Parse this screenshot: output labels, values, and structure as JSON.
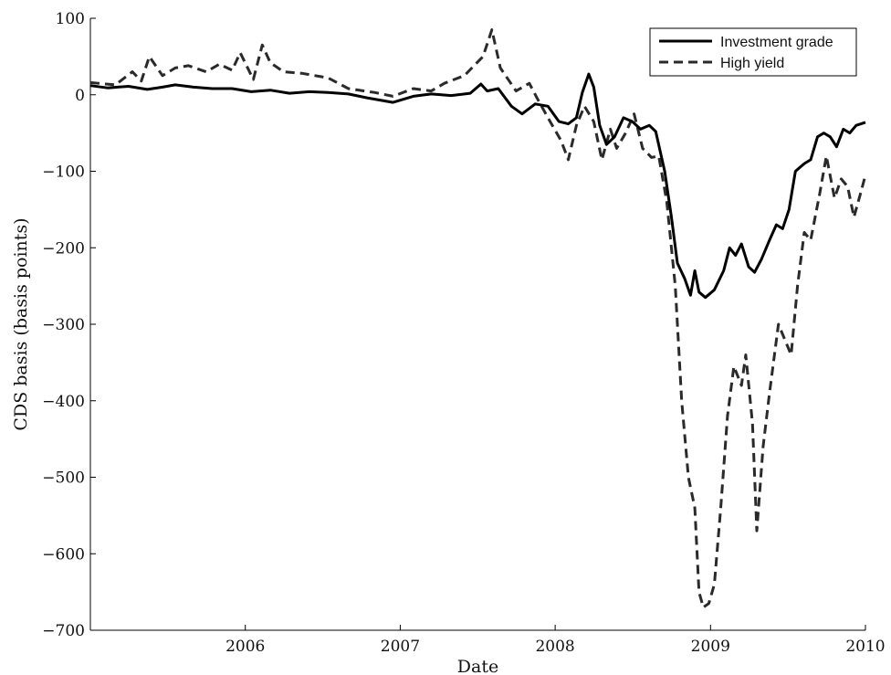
{
  "chart_data": {
    "type": "line",
    "title": "",
    "xlabel": "Date",
    "ylabel": "CDS basis (basis points)",
    "xlim": [
      "2005-01-01",
      "2010-01-01"
    ],
    "ylim": [
      -700,
      100
    ],
    "x_ticks": [
      {
        "date": "2006-01-01",
        "label": "2006"
      },
      {
        "date": "2007-01-01",
        "label": "2007"
      },
      {
        "date": "2008-01-01",
        "label": "2008"
      },
      {
        "date": "2009-01-01",
        "label": "2009"
      },
      {
        "date": "2010-01-01",
        "label": "2010"
      }
    ],
    "y_ticks": [
      {
        "value": 100,
        "label": "100"
      },
      {
        "value": 0,
        "label": "0"
      },
      {
        "value": -100,
        "label": "−100"
      },
      {
        "value": -200,
        "label": "−200"
      },
      {
        "value": -300,
        "label": "−300"
      },
      {
        "value": -400,
        "label": "−400"
      },
      {
        "value": -500,
        "label": "−500"
      },
      {
        "value": -600,
        "label": "−600"
      },
      {
        "value": -700,
        "label": "−700"
      }
    ],
    "grid": false,
    "legend_position": "top-right",
    "series": [
      {
        "name": "Investment grade",
        "style": "solid",
        "color": "#000000",
        "points": [
          [
            "2005-01-01",
            12
          ],
          [
            "2005-02-10",
            9
          ],
          [
            "2005-04-01",
            11
          ],
          [
            "2005-05-15",
            7
          ],
          [
            "2005-06-20",
            10
          ],
          [
            "2005-07-20",
            13
          ],
          [
            "2005-09-01",
            10
          ],
          [
            "2005-10-15",
            8
          ],
          [
            "2005-12-01",
            8
          ],
          [
            "2006-01-15",
            4
          ],
          [
            "2006-03-01",
            6
          ],
          [
            "2006-04-15",
            2
          ],
          [
            "2006-06-01",
            4
          ],
          [
            "2006-07-15",
            3
          ],
          [
            "2006-09-01",
            1
          ],
          [
            "2006-10-15",
            -4
          ],
          [
            "2006-12-15",
            -10
          ],
          [
            "2007-02-01",
            -2
          ],
          [
            "2007-03-15",
            1
          ],
          [
            "2007-05-01",
            -1
          ],
          [
            "2007-06-15",
            2
          ],
          [
            "2007-07-10",
            14
          ],
          [
            "2007-07-25",
            5
          ],
          [
            "2007-08-20",
            8
          ],
          [
            "2007-09-20",
            -15
          ],
          [
            "2007-10-15",
            -25
          ],
          [
            "2007-11-15",
            -12
          ],
          [
            "2007-12-15",
            -15
          ],
          [
            "2008-01-10",
            -35
          ],
          [
            "2008-02-01",
            -38
          ],
          [
            "2008-02-20",
            -30
          ],
          [
            "2008-03-05",
            3
          ],
          [
            "2008-03-20",
            27
          ],
          [
            "2008-04-01",
            10
          ],
          [
            "2008-04-15",
            -40
          ],
          [
            "2008-05-01",
            -65
          ],
          [
            "2008-05-20",
            -55
          ],
          [
            "2008-06-10",
            -30
          ],
          [
            "2008-07-01",
            -35
          ],
          [
            "2008-07-20",
            -45
          ],
          [
            "2008-08-10",
            -40
          ],
          [
            "2008-08-25",
            -48
          ],
          [
            "2008-09-15",
            -100
          ],
          [
            "2008-10-01",
            -160
          ],
          [
            "2008-10-15",
            -220
          ],
          [
            "2008-11-01",
            -240
          ],
          [
            "2008-11-15",
            -262
          ],
          [
            "2008-11-25",
            -230
          ],
          [
            "2008-12-05",
            -258
          ],
          [
            "2008-12-20",
            -265
          ],
          [
            "2009-01-10",
            -255
          ],
          [
            "2009-02-01",
            -230
          ],
          [
            "2009-02-15",
            -200
          ],
          [
            "2009-03-01",
            -210
          ],
          [
            "2009-03-15",
            -195
          ],
          [
            "2009-04-01",
            -225
          ],
          [
            "2009-04-15",
            -232
          ],
          [
            "2009-05-01",
            -215
          ],
          [
            "2009-05-20",
            -190
          ],
          [
            "2009-06-05",
            -170
          ],
          [
            "2009-06-20",
            -175
          ],
          [
            "2009-07-05",
            -150
          ],
          [
            "2009-07-20",
            -100
          ],
          [
            "2009-08-10",
            -90
          ],
          [
            "2009-08-25",
            -85
          ],
          [
            "2009-09-10",
            -55
          ],
          [
            "2009-09-25",
            -50
          ],
          [
            "2009-10-10",
            -55
          ],
          [
            "2009-10-25",
            -68
          ],
          [
            "2009-11-10",
            -45
          ],
          [
            "2009-11-25",
            -50
          ],
          [
            "2009-12-10",
            -40
          ],
          [
            "2010-01-01",
            -36
          ]
        ]
      },
      {
        "name": "High yield",
        "style": "dashed",
        "color": "#2a2a2a",
        "points": [
          [
            "2005-01-01",
            16
          ],
          [
            "2005-03-01",
            13
          ],
          [
            "2005-04-10",
            30
          ],
          [
            "2005-05-01",
            18
          ],
          [
            "2005-05-20",
            50
          ],
          [
            "2005-06-20",
            25
          ],
          [
            "2005-07-20",
            35
          ],
          [
            "2005-08-20",
            38
          ],
          [
            "2005-10-01",
            30
          ],
          [
            "2005-11-01",
            40
          ],
          [
            "2005-12-01",
            32
          ],
          [
            "2005-12-20",
            55
          ],
          [
            "2006-01-20",
            20
          ],
          [
            "2006-02-10",
            65
          ],
          [
            "2006-03-01",
            42
          ],
          [
            "2006-04-01",
            30
          ],
          [
            "2006-05-15",
            28
          ],
          [
            "2006-07-15",
            22
          ],
          [
            "2006-09-01",
            8
          ],
          [
            "2006-11-01",
            3
          ],
          [
            "2006-12-15",
            -2
          ],
          [
            "2007-02-01",
            8
          ],
          [
            "2007-03-15",
            5
          ],
          [
            "2007-04-15",
            15
          ],
          [
            "2007-06-01",
            25
          ],
          [
            "2007-07-15",
            50
          ],
          [
            "2007-08-05",
            85
          ],
          [
            "2007-08-25",
            35
          ],
          [
            "2007-10-01",
            5
          ],
          [
            "2007-11-01",
            15
          ],
          [
            "2007-11-20",
            -5
          ],
          [
            "2007-12-15",
            -30
          ],
          [
            "2008-01-15",
            -60
          ],
          [
            "2008-02-01",
            -85
          ],
          [
            "2008-02-20",
            -40
          ],
          [
            "2008-03-10",
            -15
          ],
          [
            "2008-04-01",
            -35
          ],
          [
            "2008-04-20",
            -85
          ],
          [
            "2008-05-10",
            -45
          ],
          [
            "2008-05-25",
            -70
          ],
          [
            "2008-06-15",
            -50
          ],
          [
            "2008-07-05",
            -25
          ],
          [
            "2008-07-25",
            -70
          ],
          [
            "2008-08-15",
            -82
          ],
          [
            "2008-09-01",
            -80
          ],
          [
            "2008-09-20",
            -140
          ],
          [
            "2008-10-10",
            -250
          ],
          [
            "2008-10-25",
            -400
          ],
          [
            "2008-11-10",
            -500
          ],
          [
            "2008-11-25",
            -540
          ],
          [
            "2008-12-05",
            -650
          ],
          [
            "2008-12-15",
            -670
          ],
          [
            "2008-12-28",
            -665
          ],
          [
            "2009-01-10",
            -640
          ],
          [
            "2009-01-25",
            -540
          ],
          [
            "2009-02-10",
            -420
          ],
          [
            "2009-02-25",
            -355
          ],
          [
            "2009-03-15",
            -380
          ],
          [
            "2009-03-25",
            -340
          ],
          [
            "2009-04-10",
            -430
          ],
          [
            "2009-04-20",
            -570
          ],
          [
            "2009-05-05",
            -460
          ],
          [
            "2009-05-20",
            -390
          ],
          [
            "2009-06-10",
            -300
          ],
          [
            "2009-06-25",
            -320
          ],
          [
            "2009-07-10",
            -340
          ],
          [
            "2009-07-25",
            -250
          ],
          [
            "2009-08-10",
            -180
          ],
          [
            "2009-08-25",
            -190
          ],
          [
            "2009-09-15",
            -130
          ],
          [
            "2009-10-01",
            -80
          ],
          [
            "2009-10-20",
            -135
          ],
          [
            "2009-11-05",
            -110
          ],
          [
            "2009-11-20",
            -120
          ],
          [
            "2009-12-05",
            -160
          ],
          [
            "2009-12-20",
            -130
          ],
          [
            "2010-01-01",
            -105
          ]
        ]
      }
    ]
  }
}
